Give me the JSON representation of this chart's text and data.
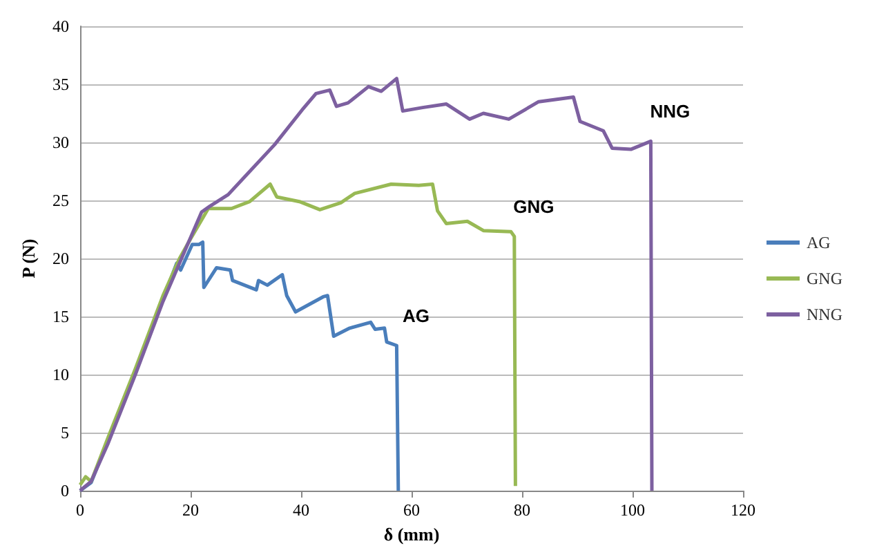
{
  "chart_data": {
    "type": "line",
    "xlabel": "δ (mm)",
    "ylabel": "P (N)",
    "xlim": [
      0,
      120
    ],
    "xticks": [
      0,
      20,
      40,
      60,
      80,
      100,
      120
    ],
    "ylim": [
      0,
      40
    ],
    "yticks": [
      0,
      5,
      10,
      15,
      20,
      25,
      30,
      35,
      40
    ],
    "grid": "y",
    "legend": "right",
    "marker": "none",
    "line_style": "solid",
    "series": [
      {
        "name": "AG",
        "color": "#4a7ebb",
        "x": [
          0,
          2,
          5,
          10,
          15,
          17.5,
          18.2,
          20.3,
          21.5,
          22.2,
          22.4,
          24.7,
          27.2,
          27.6,
          31.9,
          32.3,
          33.9,
          36.6,
          37.4,
          39,
          44,
          44.8,
          45.9,
          48.8,
          52.6,
          53.4,
          55.1,
          55.5,
          57.3,
          57.6
        ],
        "values": [
          0,
          0.7,
          4.3,
          10.3,
          16.5,
          19.6,
          19,
          21.2,
          21.2,
          21.4,
          17.5,
          19.2,
          19,
          18.1,
          17.3,
          18.1,
          17.7,
          18.6,
          16.8,
          15.4,
          16.7,
          16.8,
          13.3,
          14,
          14.5,
          13.9,
          14,
          12.8,
          12.5,
          0
        ]
      },
      {
        "name": "GNG",
        "color": "#98b954",
        "x": [
          0,
          1,
          2,
          5,
          10,
          15,
          18,
          20,
          23.2,
          27.4,
          30.7,
          34.4,
          35.6,
          39.7,
          43.4,
          47.2,
          49.7,
          56.3,
          61.3,
          63.8,
          64.7,
          66.3,
          70.1,
          73,
          78,
          78.6,
          78.8
        ],
        "values": [
          0.5,
          1.2,
          0.8,
          4.5,
          10.5,
          16.8,
          20,
          21.7,
          24.3,
          24.3,
          24.9,
          26.4,
          25.3,
          24.9,
          24.2,
          24.8,
          25.6,
          26.4,
          26.3,
          26.4,
          24.1,
          23,
          23.2,
          22.4,
          22.3,
          21.9,
          0.4
        ]
      },
      {
        "name": "NNG",
        "color": "#7d60a0",
        "x": [
          0,
          2,
          5,
          10,
          15,
          20,
          22,
          23.5,
          26.8,
          35.2,
          40.2,
          42.7,
          45.2,
          46.4,
          48.5,
          52.2,
          54.5,
          57.3,
          58.4,
          62,
          66.3,
          70.5,
          73,
          77.6,
          83,
          89.3,
          90.5,
          94.7,
          96.3,
          99.7,
          103.3,
          103.5
        ],
        "values": [
          0,
          0.8,
          4,
          10,
          16.3,
          21.8,
          24,
          24.5,
          25.5,
          29.8,
          32.8,
          34.2,
          34.5,
          33.1,
          33.4,
          34.8,
          34.4,
          35.5,
          32.7,
          33,
          33.3,
          32,
          32.5,
          32,
          33.5,
          33.9,
          31.8,
          31,
          29.5,
          29.4,
          30.1,
          0
        ]
      }
    ]
  }
}
